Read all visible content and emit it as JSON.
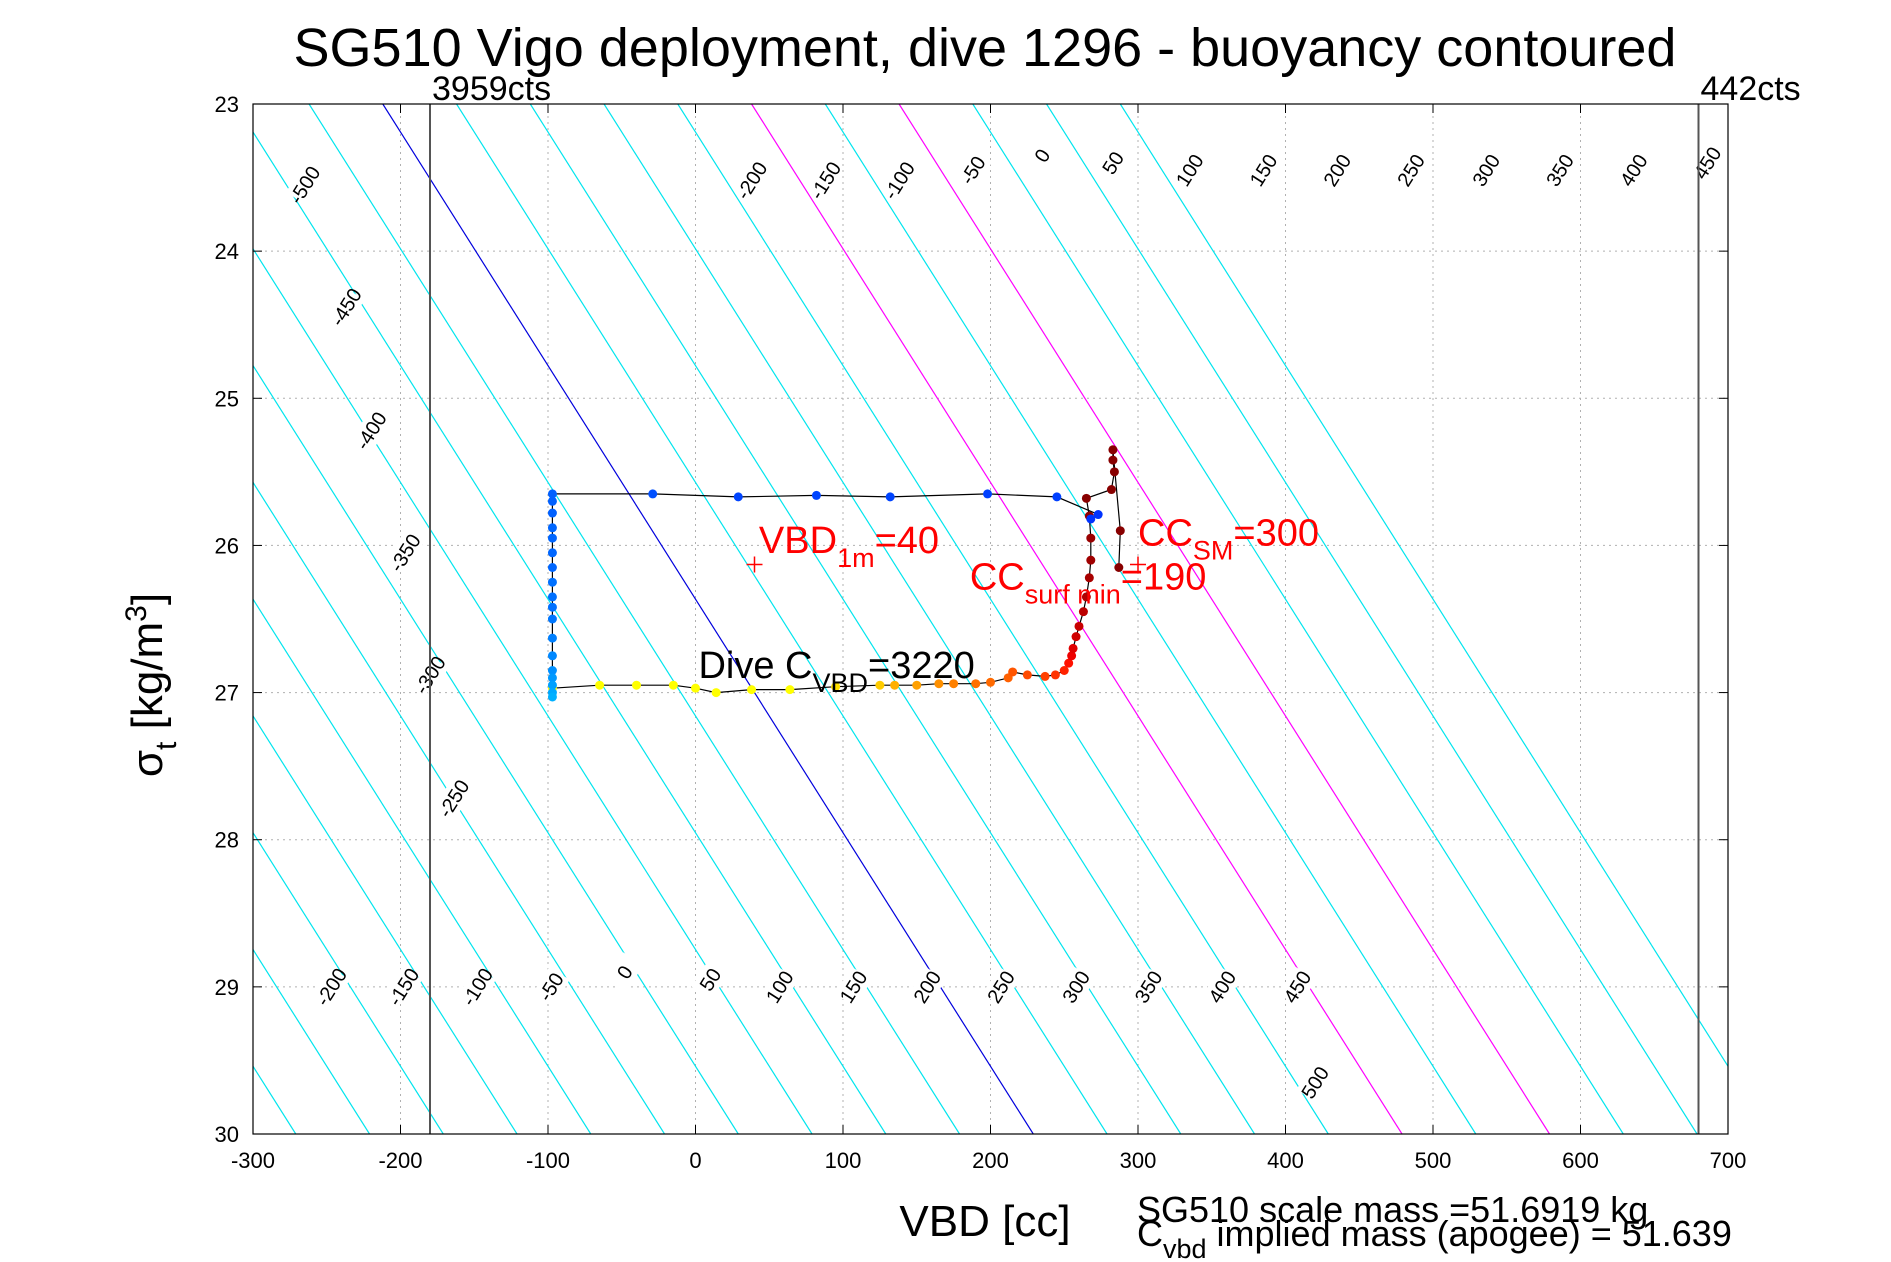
{
  "chart_data": {
    "type": "line",
    "title": "SG510 Vigo deployment, dive 1296 - buoyancy contoured",
    "xlabel": "VBD [cc]",
    "ylabel_main": "σ",
    "ylabel_sub": "t",
    "ylabel_units": " [kg/m",
    "ylabel_sup": "3",
    "ylabel_close": "]",
    "xlim": [
      -300,
      700
    ],
    "ylim": [
      30,
      23
    ],
    "y_reversed": true,
    "grid": true,
    "x_ticks": [
      -300,
      -200,
      -100,
      0,
      100,
      200,
      300,
      400,
      500,
      600,
      700
    ],
    "y_ticks": [
      23,
      24,
      25,
      26,
      27,
      28,
      29,
      30
    ],
    "count_lines": [
      {
        "x": -180,
        "label": "3959cts"
      },
      {
        "x": 680,
        "label": "442cts"
      }
    ],
    "buoyancy_contours": {
      "values": [
        -500,
        -450,
        -400,
        -350,
        -300,
        -250,
        -200,
        -150,
        -100,
        -50,
        0,
        50,
        100,
        150,
        200,
        250,
        300,
        350,
        400,
        450,
        500
      ],
      "x_offset_per_sigma_unit": 63,
      "x_at_sigma_27_for_zero": 40,
      "color": "#00e5ee",
      "highlight": [
        {
          "value": 0,
          "color": "#0000dd"
        },
        {
          "value": 250,
          "color": "#ff00ff"
        },
        {
          "value": 350,
          "color": "#ff00ff"
        }
      ],
      "top_labels": [
        {
          "value": "-500",
          "x": -265,
          "y": 23.55
        },
        {
          "value": "-450",
          "x": -237,
          "y": 24.38
        },
        {
          "value": "-400",
          "x": -220,
          "y": 25.22
        },
        {
          "value": "-350",
          "x": -197,
          "y": 26.05
        },
        {
          "value": "-300",
          "x": -180,
          "y": 26.88
        },
        {
          "value": "-250",
          "x": -164,
          "y": 27.72
        },
        {
          "value": "-200",
          "x": 38,
          "y": 23.52
        },
        {
          "value": "-150",
          "x": 88,
          "y": 23.52
        },
        {
          "value": "-100",
          "x": 138,
          "y": 23.52
        },
        {
          "value": "-50",
          "x": 188,
          "y": 23.45
        },
        {
          "value": "0",
          "x": 235,
          "y": 23.35
        },
        {
          "value": "50",
          "x": 283,
          "y": 23.4
        },
        {
          "value": "100",
          "x": 335,
          "y": 23.45
        },
        {
          "value": "150",
          "x": 385,
          "y": 23.45
        },
        {
          "value": "200",
          "x": 435,
          "y": 23.45
        },
        {
          "value": "250",
          "x": 485,
          "y": 23.45
        },
        {
          "value": "300",
          "x": 536,
          "y": 23.45
        },
        {
          "value": "350",
          "x": 586,
          "y": 23.45
        },
        {
          "value": "400",
          "x": 636,
          "y": 23.45
        },
        {
          "value": "450",
          "x": 686,
          "y": 23.4
        }
      ],
      "bottom_labels": [
        {
          "value": "-200",
          "x": -247,
          "y": 29.0
        },
        {
          "value": "-150",
          "x": -198,
          "y": 29.0
        },
        {
          "value": "-100",
          "x": -148,
          "y": 29.0
        },
        {
          "value": "-50",
          "x": -98,
          "y": 29.0
        },
        {
          "value": "0",
          "x": -48,
          "y": 28.9
        },
        {
          "value": "50",
          "x": 10,
          "y": 28.95
        },
        {
          "value": "100",
          "x": 57,
          "y": 29.0
        },
        {
          "value": "150",
          "x": 107,
          "y": 29.0
        },
        {
          "value": "200",
          "x": 157,
          "y": 29.0
        },
        {
          "value": "250",
          "x": 207,
          "y": 29.0
        },
        {
          "value": "300",
          "x": 258,
          "y": 29.0
        },
        {
          "value": "350",
          "x": 307,
          "y": 29.0
        },
        {
          "value": "400",
          "x": 357,
          "y": 29.0
        },
        {
          "value": "450",
          "x": 408,
          "y": 29.0
        },
        {
          "value": "500",
          "x": 420,
          "y": 29.65
        }
      ]
    },
    "dive_track": [
      {
        "x": -97,
        "y": 26.97,
        "c": "#ffff00"
      },
      {
        "x": -65,
        "y": 26.95,
        "c": "#ffff00"
      },
      {
        "x": -40,
        "y": 26.95,
        "c": "#ffff00"
      },
      {
        "x": -15,
        "y": 26.95,
        "c": "#ffff00"
      },
      {
        "x": 0,
        "y": 26.97,
        "c": "#ffff00"
      },
      {
        "x": 14,
        "y": 27.0,
        "c": "#ffff00"
      },
      {
        "x": 38,
        "y": 26.98,
        "c": "#ffff00"
      },
      {
        "x": 64,
        "y": 26.98,
        "c": "#ffff00"
      },
      {
        "x": 95,
        "y": 26.96,
        "c": "#ffe000"
      },
      {
        "x": 125,
        "y": 26.95,
        "c": "#ffcc00"
      },
      {
        "x": 135,
        "y": 26.95,
        "c": "#ffb000"
      },
      {
        "x": 150,
        "y": 26.95,
        "c": "#ffa000"
      },
      {
        "x": 165,
        "y": 26.94,
        "c": "#ff9000"
      },
      {
        "x": 175,
        "y": 26.94,
        "c": "#ff8000"
      },
      {
        "x": 190,
        "y": 26.94,
        "c": "#ff7000"
      },
      {
        "x": 200,
        "y": 26.93,
        "c": "#ff6a00"
      },
      {
        "x": 212,
        "y": 26.9,
        "c": "#ff6000"
      },
      {
        "x": 215,
        "y": 26.86,
        "c": "#ff5500"
      },
      {
        "x": 225,
        "y": 26.88,
        "c": "#ff4a00"
      },
      {
        "x": 237,
        "y": 26.89,
        "c": "#ff4000"
      },
      {
        "x": 244,
        "y": 26.88,
        "c": "#ff3300"
      },
      {
        "x": 250,
        "y": 26.85,
        "c": "#ff2200"
      },
      {
        "x": 253,
        "y": 26.8,
        "c": "#ff1100"
      },
      {
        "x": 255,
        "y": 26.75,
        "c": "#ee0000"
      },
      {
        "x": 256,
        "y": 26.7,
        "c": "#e00000"
      },
      {
        "x": 258,
        "y": 26.62,
        "c": "#d00000"
      },
      {
        "x": 260,
        "y": 26.55,
        "c": "#c80000"
      },
      {
        "x": 263,
        "y": 26.45,
        "c": "#bb0000"
      },
      {
        "x": 265,
        "y": 26.35,
        "c": "#b00000"
      },
      {
        "x": 267,
        "y": 26.22,
        "c": "#a80000"
      },
      {
        "x": 268,
        "y": 26.1,
        "c": "#a00000"
      },
      {
        "x": 268,
        "y": 25.95,
        "c": "#990000"
      },
      {
        "x": 267,
        "y": 25.8,
        "c": "#900000"
      },
      {
        "x": 265,
        "y": 25.68,
        "c": "#880000"
      },
      {
        "x": 282,
        "y": 25.62,
        "c": "#880000"
      },
      {
        "x": 284,
        "y": 25.5,
        "c": "#880000"
      },
      {
        "x": 283,
        "y": 25.42,
        "c": "#880000"
      },
      {
        "x": 283,
        "y": 25.35,
        "c": "#880000"
      },
      {
        "x": 288,
        "y": 25.9,
        "c": "#880000"
      },
      {
        "x": 287,
        "y": 26.15,
        "c": "#880000"
      }
    ],
    "climb_track": [
      {
        "x": 268,
        "y": 25.82,
        "c": "#0033ff"
      },
      {
        "x": 273,
        "y": 25.79,
        "c": "#0033ff"
      },
      {
        "x": 245,
        "y": 25.67,
        "c": "#0040ff"
      },
      {
        "x": 198,
        "y": 25.65,
        "c": "#0040ff"
      },
      {
        "x": 132,
        "y": 25.67,
        "c": "#0044ff"
      },
      {
        "x": 82,
        "y": 25.66,
        "c": "#0044ff"
      },
      {
        "x": 29,
        "y": 25.67,
        "c": "#0044ff"
      },
      {
        "x": -29,
        "y": 25.65,
        "c": "#0050ff"
      },
      {
        "x": -97,
        "y": 25.65,
        "c": "#0060ff"
      },
      {
        "x": -97,
        "y": 25.7,
        "c": "#0060ff"
      },
      {
        "x": -97,
        "y": 25.78,
        "c": "#0060ff"
      },
      {
        "x": -97,
        "y": 25.88,
        "c": "#0066ff"
      },
      {
        "x": -97,
        "y": 25.95,
        "c": "#0066ff"
      },
      {
        "x": -97,
        "y": 26.05,
        "c": "#0066ff"
      },
      {
        "x": -97,
        "y": 26.15,
        "c": "#0066ff"
      },
      {
        "x": -97,
        "y": 26.25,
        "c": "#0070ff"
      },
      {
        "x": -97,
        "y": 26.35,
        "c": "#0070ff"
      },
      {
        "x": -97,
        "y": 26.42,
        "c": "#0070ff"
      },
      {
        "x": -97,
        "y": 26.5,
        "c": "#0077ff"
      },
      {
        "x": -97,
        "y": 26.63,
        "c": "#0080ff"
      },
      {
        "x": -97,
        "y": 26.75,
        "c": "#0088ff"
      },
      {
        "x": -97,
        "y": 26.85,
        "c": "#0090ff"
      },
      {
        "x": -97,
        "y": 26.9,
        "c": "#0099ff"
      },
      {
        "x": -97,
        "y": 26.95,
        "c": "#00a0ff"
      },
      {
        "x": -97,
        "y": 27.0,
        "c": "#00a8ff"
      },
      {
        "x": -97,
        "y": 27.03,
        "c": "#00b0ff"
      }
    ],
    "annotations": [
      {
        "id": "vbd1m",
        "marker_x": 40,
        "marker_y": 26.13,
        "text_main": "VBD",
        "text_sub": "1m",
        "text_tail": "=40",
        "color": "#ff0000",
        "text_x": 43,
        "text_y": 26.05
      },
      {
        "id": "ccsurf",
        "text_main": "CC",
        "text_sub": "surf min",
        "text_tail": "=190",
        "color": "#ff0000",
        "text_x": 186,
        "text_y": 26.3
      },
      {
        "id": "ccsm",
        "marker_x": 300,
        "marker_y": 26.13,
        "text_main": "CC",
        "text_sub": "SM",
        "text_tail": "=300",
        "color": "#ff0000",
        "text_x": 300,
        "text_y": 26.0
      },
      {
        "id": "divec",
        "text_main": "Dive C",
        "text_sub": "VBD",
        "text_tail": "=3220",
        "color": "#000000",
        "text_x": 2,
        "text_y": 26.9
      }
    ],
    "footer": {
      "scale_mass": "SG510 scale mass =51.6919 kg",
      "implied_main": "C",
      "implied_sub": "vbd",
      "implied_tail": " implied mass (apogee) = 51.639"
    }
  }
}
